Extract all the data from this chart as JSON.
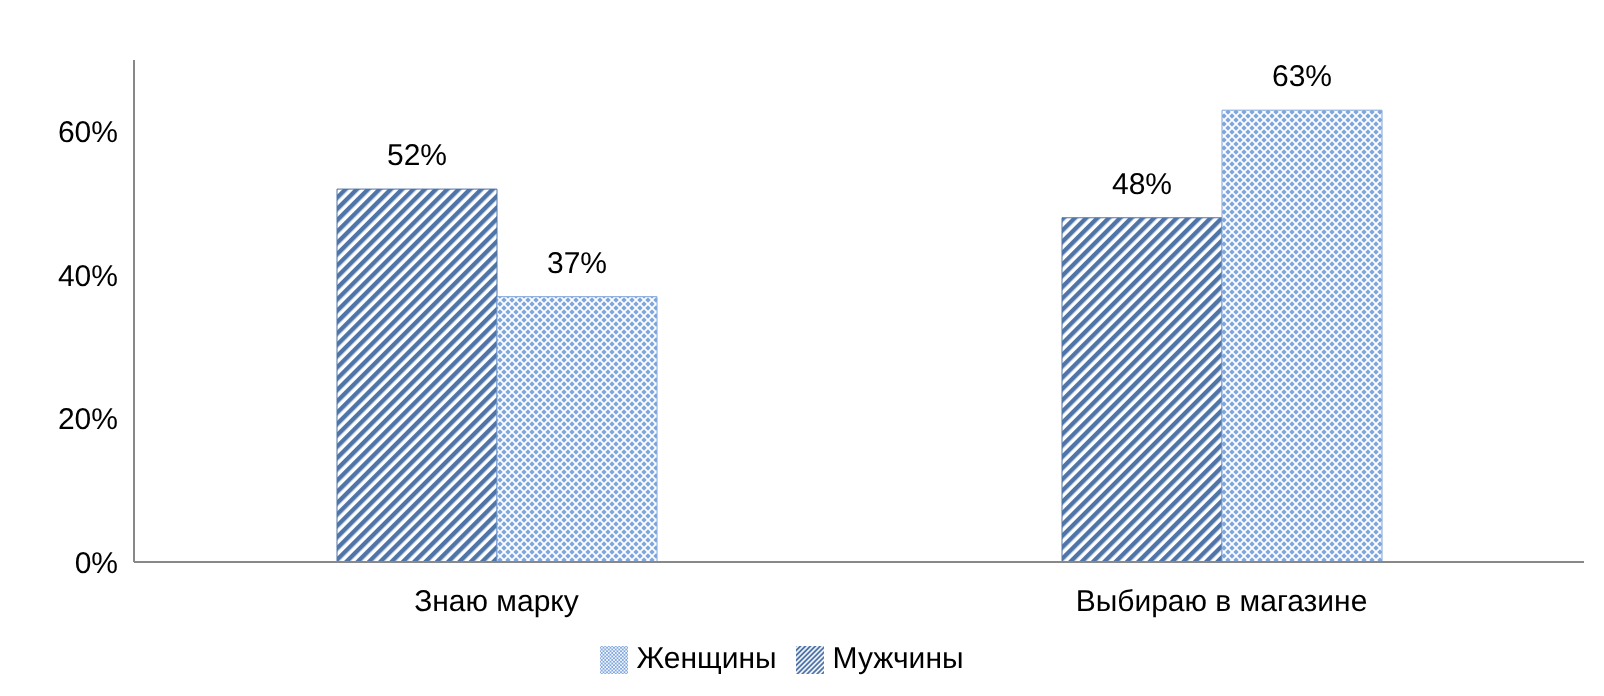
{
  "chart_data": {
    "type": "bar",
    "categories": [
      "Знаю марку",
      "Выбираю в магазине"
    ],
    "series": [
      {
        "name": "Мужчины",
        "color": "#4f74a8",
        "values": [
          52,
          48
        ],
        "value_labels": [
          "52%",
          "48%"
        ]
      },
      {
        "name": "Женщины",
        "color": "#7fa6dc",
        "values": [
          37,
          63
        ],
        "value_labels": [
          "37%",
          "63%"
        ]
      }
    ],
    "ylim": [
      0,
      70
    ],
    "yticks": [
      {
        "value": 0,
        "label": "0%"
      },
      {
        "value": 20,
        "label": "20%"
      },
      {
        "value": 40,
        "label": "40%"
      },
      {
        "value": 60,
        "label": "60%"
      }
    ],
    "grid": false,
    "legend": "bottom"
  }
}
